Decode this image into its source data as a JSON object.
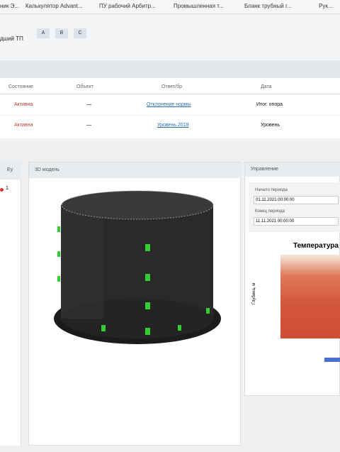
{
  "bookmarks": [
    "ник Э...",
    "Калькулятор Advant...",
    "ПУ рабочий Арбитр...",
    "Промышленная т...",
    "Бланк трубный г...",
    "Рук..."
  ],
  "header": {
    "title": "дший ТП",
    "buttons": [
      "A",
      "B",
      "C"
    ]
  },
  "table": {
    "columns": [
      "Состояние",
      "Объект",
      "Ответ/бр",
      "Дата"
    ],
    "rows": [
      [
        "Активна",
        "—",
        "Отклонение нормы",
        "Итог. опора"
      ],
      [
        "Активна",
        "—",
        "Уровень 2019",
        "Уровень"
      ]
    ]
  },
  "left_panel": {
    "title": "Ey",
    "row": "1"
  },
  "model_panel": {
    "title": "3D модель"
  },
  "control_panel": {
    "title": "Управление",
    "fields": [
      {
        "label": "Начало периода",
        "value": "01.11.2021 00:00:00"
      },
      {
        "label": "Конец периода",
        "value": "11.11.2021 00:00:00"
      }
    ],
    "chart_title": "Температура",
    "y_axis_label": "Глубина, м"
  }
}
